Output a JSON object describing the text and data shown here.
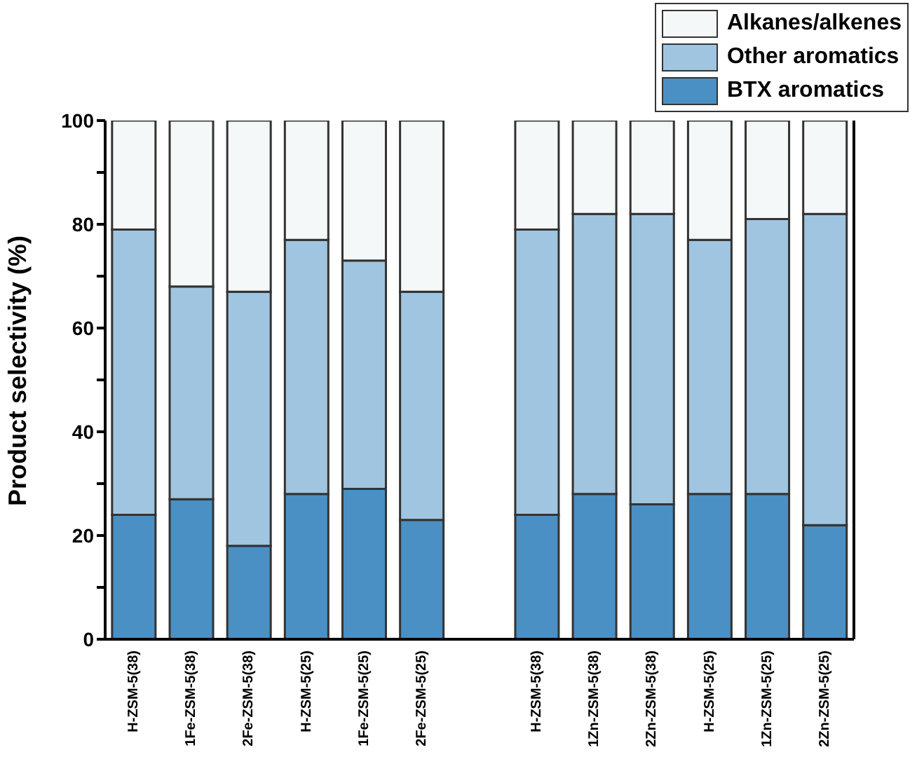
{
  "chart_data": {
    "type": "bar",
    "stacked": true,
    "ylabel": "Product selectivity (%)",
    "categories": [
      "H-ZSM-5(38)",
      "1Fe-ZSM-5(38)",
      "2Fe-ZSM-5(38)",
      "H-ZSM-5(25)",
      "1Fe-ZSM-5(25)",
      "2Fe-ZSM-5(25)",
      null,
      "H-ZSM-5(38)",
      "1Zn-ZSM-5(38)",
      "2Zn-ZSM-5(38)",
      "H-ZSM-5(25)",
      "1Zn-ZSM-5(25)",
      "2Zn-ZSM-5(25)"
    ],
    "series": [
      {
        "name": "BTX aromatics",
        "color": "#4a90c4",
        "values": [
          24,
          27,
          18,
          28,
          29,
          23,
          null,
          24,
          28,
          26,
          28,
          28,
          22
        ]
      },
      {
        "name": "Other aromatics",
        "color": "#a0c5e0",
        "values": [
          55,
          41,
          49,
          49,
          44,
          44,
          null,
          55,
          54,
          56,
          49,
          53,
          60
        ]
      },
      {
        "name": "Alkanes/alkenes",
        "color": "#f5f8f8",
        "values": [
          21,
          32,
          33,
          23,
          27,
          33,
          null,
          21,
          18,
          18,
          23,
          19,
          18
        ]
      }
    ],
    "ylim": [
      0,
      100
    ],
    "yticks": [
      0,
      {
        "value": 10,
        "label": null
      },
      20,
      {
        "value": 30,
        "label": null
      },
      40,
      {
        "value": 50,
        "label": null
      },
      60,
      {
        "value": 70,
        "label": null
      },
      80,
      {
        "value": 90,
        "label": null
      },
      100
    ],
    "grid": false,
    "legend": "top right"
  }
}
